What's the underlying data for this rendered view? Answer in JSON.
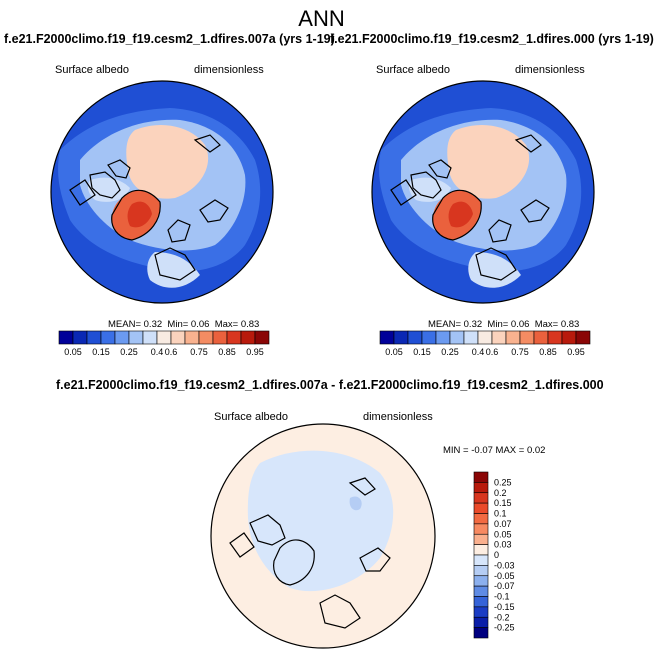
{
  "title": "ANN",
  "panel_left": {
    "case_title": "f.e21.F2000climo.f19_f19.cesm2_1.dfires.007a (yrs 1-19)",
    "variable": "Surface albedo",
    "units": "dimensionless",
    "stats": {
      "mean_label": "MEAN=",
      "mean": "0.32",
      "min_label": "Min=",
      "min": "0.06",
      "max_label": "Max=",
      "max": "0.83"
    }
  },
  "panel_right": {
    "case_title": "f.e21.F2000climo.f19_f19.cesm2_1.dfires.000 (yrs 1-19)",
    "variable": "Surface albedo",
    "units": "dimensionless",
    "stats": {
      "mean_label": "MEAN=",
      "mean": "0.32",
      "min_label": "Min=",
      "min": "0.06",
      "max_label": "Max=",
      "max": "0.83"
    }
  },
  "panel_diff": {
    "case_title": "f.e21.F2000climo.f19_f19.cesm2_1.dfires.007a - f.e21.F2000climo.f19_f19.cesm2_1.dfires.000",
    "variable": "Surface albedo",
    "units": "dimensionless",
    "stats": {
      "min_label": "MIN =",
      "min": "-0.07",
      "max_label": "MAX =",
      "max": "0.02"
    }
  },
  "colorbar_abs": {
    "labels": [
      "0.05",
      "0.15",
      "0.25",
      "0.4",
      "0.6",
      "0.75",
      "0.85",
      "0.95"
    ],
    "colors": [
      "#000099",
      "#0a28b4",
      "#1f4fd4",
      "#3a6fe6",
      "#6b9af0",
      "#a3c3f5",
      "#cfe0f9",
      "#f8ebe2",
      "#fbd3bd",
      "#f9b28f",
      "#f48c63",
      "#ea613d",
      "#d8361f",
      "#b81a0c",
      "#8a0606"
    ]
  },
  "colorbar_diff": {
    "labels": [
      "0.25",
      "0.2",
      "0.15",
      "0.1",
      "0.07",
      "0.05",
      "0.03",
      "0",
      "-0.03",
      "-0.05",
      "-0.07",
      "-0.1",
      "-0.15",
      "-0.2",
      "-0.25"
    ],
    "colors": [
      "#8a0606",
      "#b81a0c",
      "#d8361f",
      "#ea4a2a",
      "#f26a42",
      "#f78a62",
      "#fab08e",
      "#fdeee2",
      "#d7e6fb",
      "#b5cdf4",
      "#8cb0ee",
      "#5f8be4",
      "#3563d8",
      "#1a3cc4",
      "#0a1ea8",
      "#000080"
    ]
  },
  "map_colors": {
    "ocean_deep": "#1f4fd4",
    "ocean_mid": "#3a6fe6",
    "seaice_edge": "#a3c3f5",
    "seaice": "#fbd3bd",
    "greenland": "#ea613d",
    "greenland_top": "#d8361f",
    "land_pale": "#cfe0f9",
    "diff_pos": "#fdeee2",
    "diff_neg": "#d7e6fb",
    "diff_neg2": "#b5cdf4"
  }
}
